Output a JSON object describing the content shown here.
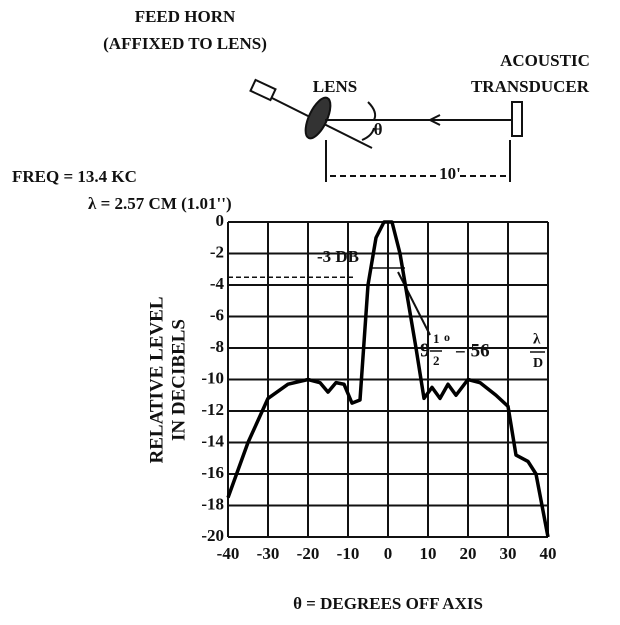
{
  "diagram": {
    "feed_horn": "FEED HORN",
    "affixed": "(AFFIXED TO LENS)",
    "lens": "LENS",
    "acoustic": "ACOUSTIC",
    "transducer": "TRANSDUCER",
    "theta": "θ",
    "distance": "10'"
  },
  "chart_data": {
    "type": "line",
    "freq": "FREQ = 13.4 KC",
    "wavelength": "λ = 2.57 CM (1.01'')",
    "xlabel": "θ = DEGREES OFF AXIS",
    "ylabel": [
      "RELATIVE LEVEL",
      "IN DECIBELS"
    ],
    "annotations": {
      "db": "-3 DB",
      "whole": "9",
      "num": "1",
      "den": "2",
      "deg": "o",
      "eq": "= 56",
      "lam": "λ",
      "d": "D"
    },
    "x": [
      -40,
      -35,
      -30,
      -25,
      -20,
      -17,
      -15,
      -13,
      -11,
      -9,
      -7,
      -5,
      -3,
      -1,
      1,
      3,
      5,
      7,
      9,
      11,
      13,
      15,
      17,
      20,
      23,
      27,
      30,
      32,
      35,
      37,
      40
    ],
    "series": [
      {
        "color": "#000000",
        "values": [
          -17.5,
          -14,
          -11.2,
          -10.3,
          -10,
          -10.2,
          -10.8,
          -10.2,
          -10.3,
          -11.5,
          -11.3,
          -4,
          -1,
          0,
          0,
          -2,
          -5,
          -8,
          -11.2,
          -10.5,
          -11.2,
          -10.3,
          -11,
          -10,
          -10.2,
          -11,
          -11.7,
          -14.8,
          -15.2,
          -16,
          -20
        ]
      }
    ],
    "xlim": [
      -40,
      40
    ],
    "xticks": [
      -40,
      -30,
      -20,
      -10,
      0,
      10,
      20,
      30,
      40
    ],
    "ylim": [
      -20,
      0
    ],
    "yticks": [
      0,
      -2,
      -4,
      -6,
      -8,
      -10,
      -12,
      -14,
      -16,
      -18,
      -20
    ],
    "grid": true
  }
}
